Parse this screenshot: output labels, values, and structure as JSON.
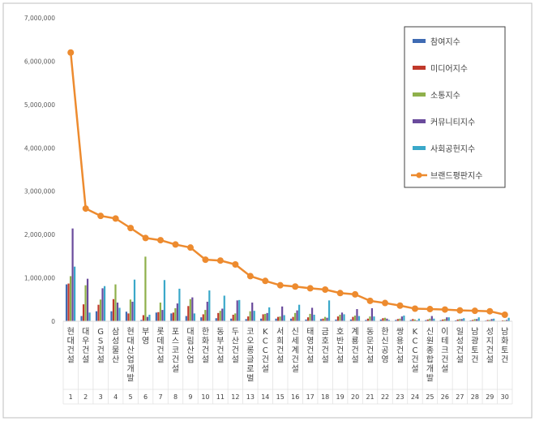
{
  "chart_data": {
    "type": "bar",
    "title": "",
    "xlabel": "",
    "ylabel": "",
    "ylim": [
      0,
      7000000
    ],
    "yticks": [
      "0",
      "1,000,000",
      "2,000,000",
      "3,000,000",
      "4,000,000",
      "5,000,000",
      "6,000,000",
      "7,000,000"
    ],
    "grid": false,
    "legend_position": "top-right",
    "categories": [
      "현대건설",
      "대우건설",
      "GS건설",
      "삼성물산",
      "현대산업개발",
      "부영",
      "롯데건설",
      "포스코건설",
      "대림산업",
      "한화건설",
      "동부건설",
      "두산건설",
      "코오롱글로벌",
      "KCC건설",
      "서희건설",
      "신세계건설",
      "태영건설",
      "금호건설",
      "호반건설",
      "계룡건설",
      "동문건설",
      "한신공영",
      "쌍용건설",
      "KCC건설",
      "신원종합개발",
      "이테크건설",
      "일성건설",
      "남광토건",
      "성지건설",
      "남화토건"
    ],
    "ranks": [
      "1",
      "2",
      "3",
      "4",
      "5",
      "6",
      "7",
      "8",
      "9",
      "10",
      "11",
      "12",
      "13",
      "14",
      "15",
      "16",
      "17",
      "18",
      "19",
      "20",
      "21",
      "22",
      "23",
      "24",
      "25",
      "26",
      "27",
      "28",
      "29",
      "30"
    ],
    "series": [
      {
        "name": "참여지수",
        "color": "#3f6bb3",
        "kind": "bar",
        "values": [
          850000,
          120000,
          230000,
          230000,
          220000,
          30000,
          200000,
          180000,
          120000,
          90000,
          70000,
          60000,
          50000,
          60000,
          60000,
          60000,
          40000,
          50000,
          40000,
          40000,
          30000,
          40000,
          30000,
          30000,
          25000,
          25000,
          20000,
          20000,
          15000,
          10000
        ]
      },
      {
        "name": "미디어지수",
        "color": "#c0392b",
        "kind": "bar",
        "values": [
          870000,
          390000,
          380000,
          510000,
          180000,
          140000,
          210000,
          200000,
          350000,
          160000,
          190000,
          150000,
          110000,
          160000,
          100000,
          100000,
          90000,
          60000,
          110000,
          100000,
          60000,
          70000,
          50000,
          50000,
          40000,
          40000,
          40000,
          30000,
          30000,
          20000
        ]
      },
      {
        "name": "소통지수",
        "color": "#8fb04b",
        "kind": "bar",
        "values": [
          1040000,
          830000,
          500000,
          850000,
          500000,
          1490000,
          430000,
          300000,
          510000,
          260000,
          240000,
          180000,
          230000,
          170000,
          110000,
          190000,
          170000,
          100000,
          150000,
          130000,
          110000,
          80000,
          60000,
          40000,
          60000,
          50000,
          50000,
          50000,
          30000,
          20000
        ]
      },
      {
        "name": "커뮤니티지수",
        "color": "#6a4b9c",
        "kind": "bar",
        "values": [
          2140000,
          980000,
          760000,
          430000,
          450000,
          100000,
          260000,
          410000,
          550000,
          450000,
          290000,
          480000,
          430000,
          190000,
          340000,
          250000,
          310000,
          80000,
          200000,
          280000,
          300000,
          60000,
          110000,
          20000,
          120000,
          90000,
          50000,
          50000,
          50000,
          30000
        ]
      },
      {
        "name": "사회공헌지수",
        "color": "#3aa8c9",
        "kind": "bar",
        "values": [
          1260000,
          200000,
          810000,
          310000,
          960000,
          150000,
          950000,
          750000,
          180000,
          710000,
          590000,
          490000,
          240000,
          320000,
          140000,
          380000,
          150000,
          480000,
          160000,
          120000,
          110000,
          30000,
          130000,
          60000,
          60000,
          90000,
          70000,
          90000,
          60000,
          80000
        ]
      },
      {
        "name": "브랜드평판지수",
        "color": "#ed8b2f",
        "kind": "line",
        "values": [
          6200000,
          2600000,
          2430000,
          2370000,
          2150000,
          1920000,
          1870000,
          1770000,
          1700000,
          1420000,
          1400000,
          1310000,
          1040000,
          930000,
          830000,
          800000,
          760000,
          730000,
          650000,
          620000,
          470000,
          420000,
          360000,
          290000,
          280000,
          270000,
          250000,
          240000,
          230000,
          150000
        ]
      }
    ]
  }
}
